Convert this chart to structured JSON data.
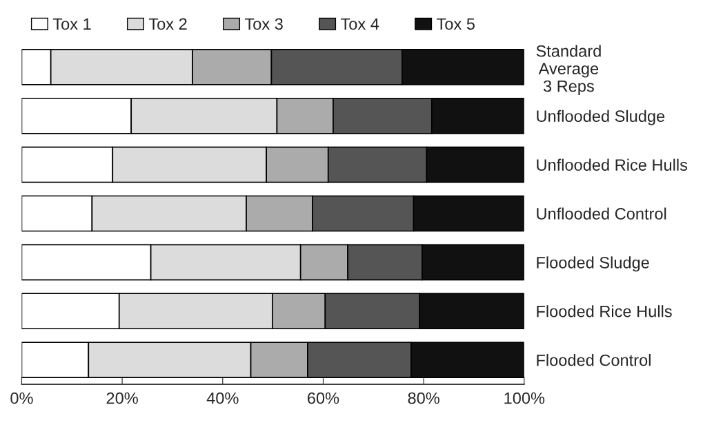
{
  "chart_data": {
    "type": "bar",
    "orientation": "horizontal",
    "stacked": true,
    "categories": [
      "Standard\nAverage\n3 Reps",
      "Unflooded Sludge",
      "Unflooded Rice Hulls",
      "Unflooded Control",
      "Flooded Sludge",
      "Flooded Rice Hulls",
      "Flooded Control"
    ],
    "series": [
      {
        "name": "Tox 1",
        "color": "#ffffff",
        "values": [
          5.8,
          21.8,
          18.1,
          14.0,
          25.7,
          19.4,
          13.3
        ]
      },
      {
        "name": "Tox 2",
        "color": "#dcdcdc",
        "values": [
          28.2,
          29.0,
          30.6,
          30.7,
          29.8,
          30.5,
          32.3
        ]
      },
      {
        "name": "Tox 3",
        "color": "#ababab",
        "values": [
          15.7,
          11.2,
          12.3,
          13.2,
          9.4,
          10.5,
          11.3
        ]
      },
      {
        "name": "Tox 4",
        "color": "#555555",
        "values": [
          26.0,
          19.6,
          19.6,
          20.1,
          14.8,
          18.8,
          20.6
        ]
      },
      {
        "name": "Tox 5",
        "color": "#111111",
        "values": [
          24.3,
          18.5,
          19.4,
          21.9,
          20.3,
          20.8,
          22.4
        ]
      }
    ],
    "xlim": [
      0,
      100
    ],
    "xticks": [
      {
        "value": 0,
        "label": "0%"
      },
      {
        "value": 20,
        "label": "20%"
      },
      {
        "value": 40,
        "label": "40%"
      },
      {
        "value": 60,
        "label": "60%"
      },
      {
        "value": 80,
        "label": "80%"
      },
      {
        "value": 100,
        "label": "100%"
      }
    ],
    "grid": false,
    "legend": "top"
  }
}
